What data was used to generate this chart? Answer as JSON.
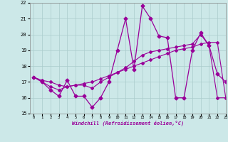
{
  "xlabel": "Windchill (Refroidissement éolien,°C)",
  "hours": [
    0,
    1,
    2,
    3,
    4,
    5,
    6,
    7,
    8,
    9,
    10,
    11,
    12,
    13,
    14,
    15,
    16,
    17,
    18,
    19,
    20,
    21,
    22,
    23
  ],
  "windchill": [
    17.3,
    17.0,
    16.5,
    16.1,
    17.1,
    16.1,
    16.1,
    15.4,
    16.0,
    17.0,
    19.0,
    21.0,
    17.8,
    21.8,
    21.0,
    19.9,
    19.8,
    16.0,
    16.0,
    19.0,
    20.1,
    19.3,
    17.5,
    17.0
  ],
  "trend1": [
    17.3,
    17.1,
    17.0,
    16.8,
    16.7,
    16.8,
    16.9,
    17.0,
    17.2,
    17.4,
    17.6,
    17.8,
    18.0,
    18.2,
    18.4,
    18.6,
    18.8,
    19.0,
    19.1,
    19.2,
    19.4,
    19.5,
    19.5,
    16.0
  ],
  "trend2": [
    17.3,
    17.0,
    16.7,
    16.5,
    16.7,
    16.8,
    16.8,
    16.6,
    17.0,
    17.3,
    17.6,
    17.9,
    18.3,
    18.7,
    18.9,
    19.0,
    19.1,
    19.2,
    19.3,
    19.4,
    20.0,
    19.3,
    16.0,
    16.0
  ],
  "line_color": "#990099",
  "bg_color": "#cce8e8",
  "grid_color": "#aacccc",
  "ylim": [
    15,
    22
  ],
  "xlim": [
    -0.5,
    23
  ],
  "yticks": [
    15,
    16,
    17,
    18,
    19,
    20,
    21,
    22
  ],
  "xticks": [
    0,
    1,
    2,
    3,
    4,
    5,
    6,
    7,
    8,
    9,
    10,
    11,
    12,
    13,
    14,
    15,
    16,
    17,
    18,
    19,
    20,
    21,
    22,
    23
  ]
}
